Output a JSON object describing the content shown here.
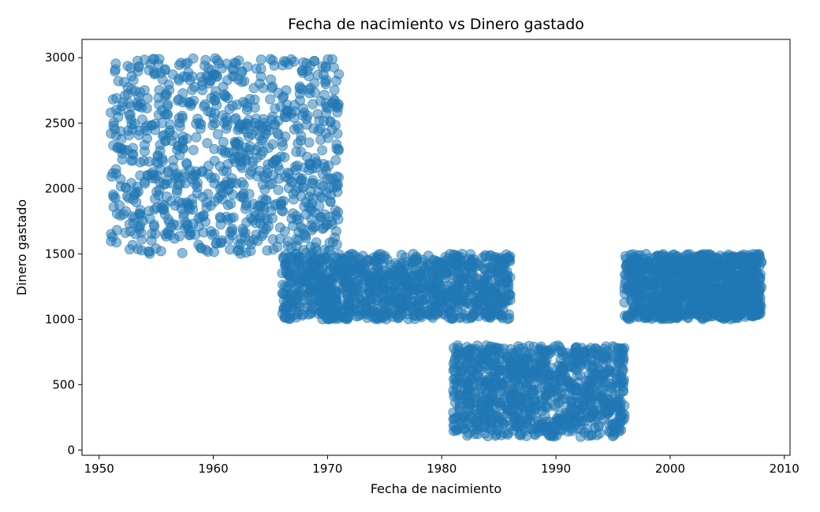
{
  "chart_data": {
    "type": "scatter",
    "title": "Fecha de nacimiento vs Dinero gastado",
    "xlabel": "Fecha de nacimiento",
    "ylabel": "Dinero gastado",
    "xlim": [
      1948.5,
      2010.5
    ],
    "ylim": [
      -40,
      3140
    ],
    "xticks": [
      1950,
      1960,
      1970,
      1980,
      1990,
      2000,
      2010
    ],
    "yticks": [
      0,
      500,
      1000,
      1500,
      2000,
      2500,
      3000
    ],
    "grid": false,
    "marker_color": "#1f77b4",
    "marker_alpha": 0.5,
    "clusters": [
      {
        "x_range": [
          1951,
          1971
        ],
        "y_range": [
          1500,
          3000
        ],
        "count": 900
      },
      {
        "x_range": [
          1966,
          1986
        ],
        "y_range": [
          1000,
          1500
        ],
        "count": 1100
      },
      {
        "x_range": [
          1981,
          1996
        ],
        "y_range": [
          100,
          800
        ],
        "count": 1000
      },
      {
        "x_range": [
          1996,
          2008
        ],
        "y_range": [
          1000,
          1500
        ],
        "count": 1100
      }
    ]
  }
}
